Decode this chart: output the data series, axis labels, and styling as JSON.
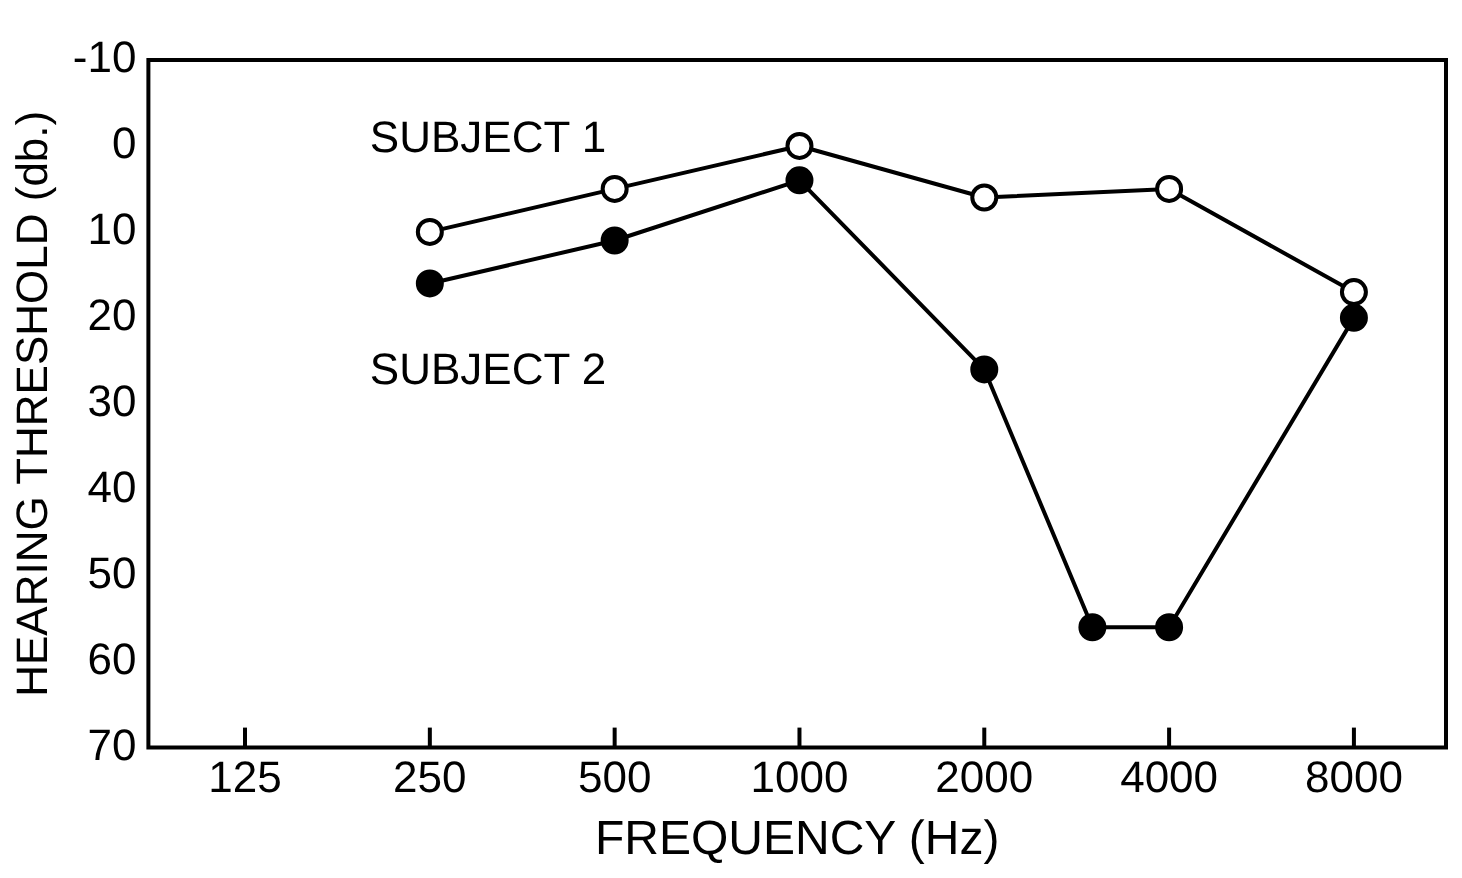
{
  "chart_data": {
    "type": "line",
    "xlabel": "FREQUENCY (Hz)",
    "ylabel": "HEARING THRESHOLD (db.)",
    "log": "x",
    "xlim": [
      87,
      11300
    ],
    "xticks": [
      125,
      250,
      500,
      1000,
      2000,
      4000,
      8000
    ],
    "ylim": [
      70,
      -10
    ],
    "yticks": [
      -10,
      0,
      10,
      20,
      30,
      40,
      50,
      60,
      70
    ],
    "marker": "circle",
    "line_style": "solid",
    "grid": false,
    "legend": false,
    "series": [
      {
        "name": "SUBJECT 1",
        "color": "#000000",
        "x": [
          250,
          500,
          1000,
          2000,
          4000,
          8000
        ],
        "values": [
          10,
          5,
          0,
          6,
          5,
          17
        ]
      },
      {
        "name": "SUBJECT 2",
        "color": "#000000",
        "x": [
          250,
          500,
          1000,
          2000,
          3000,
          4000,
          8000
        ],
        "values": [
          16,
          11,
          4,
          26,
          56,
          56,
          20
        ]
      }
    ]
  }
}
